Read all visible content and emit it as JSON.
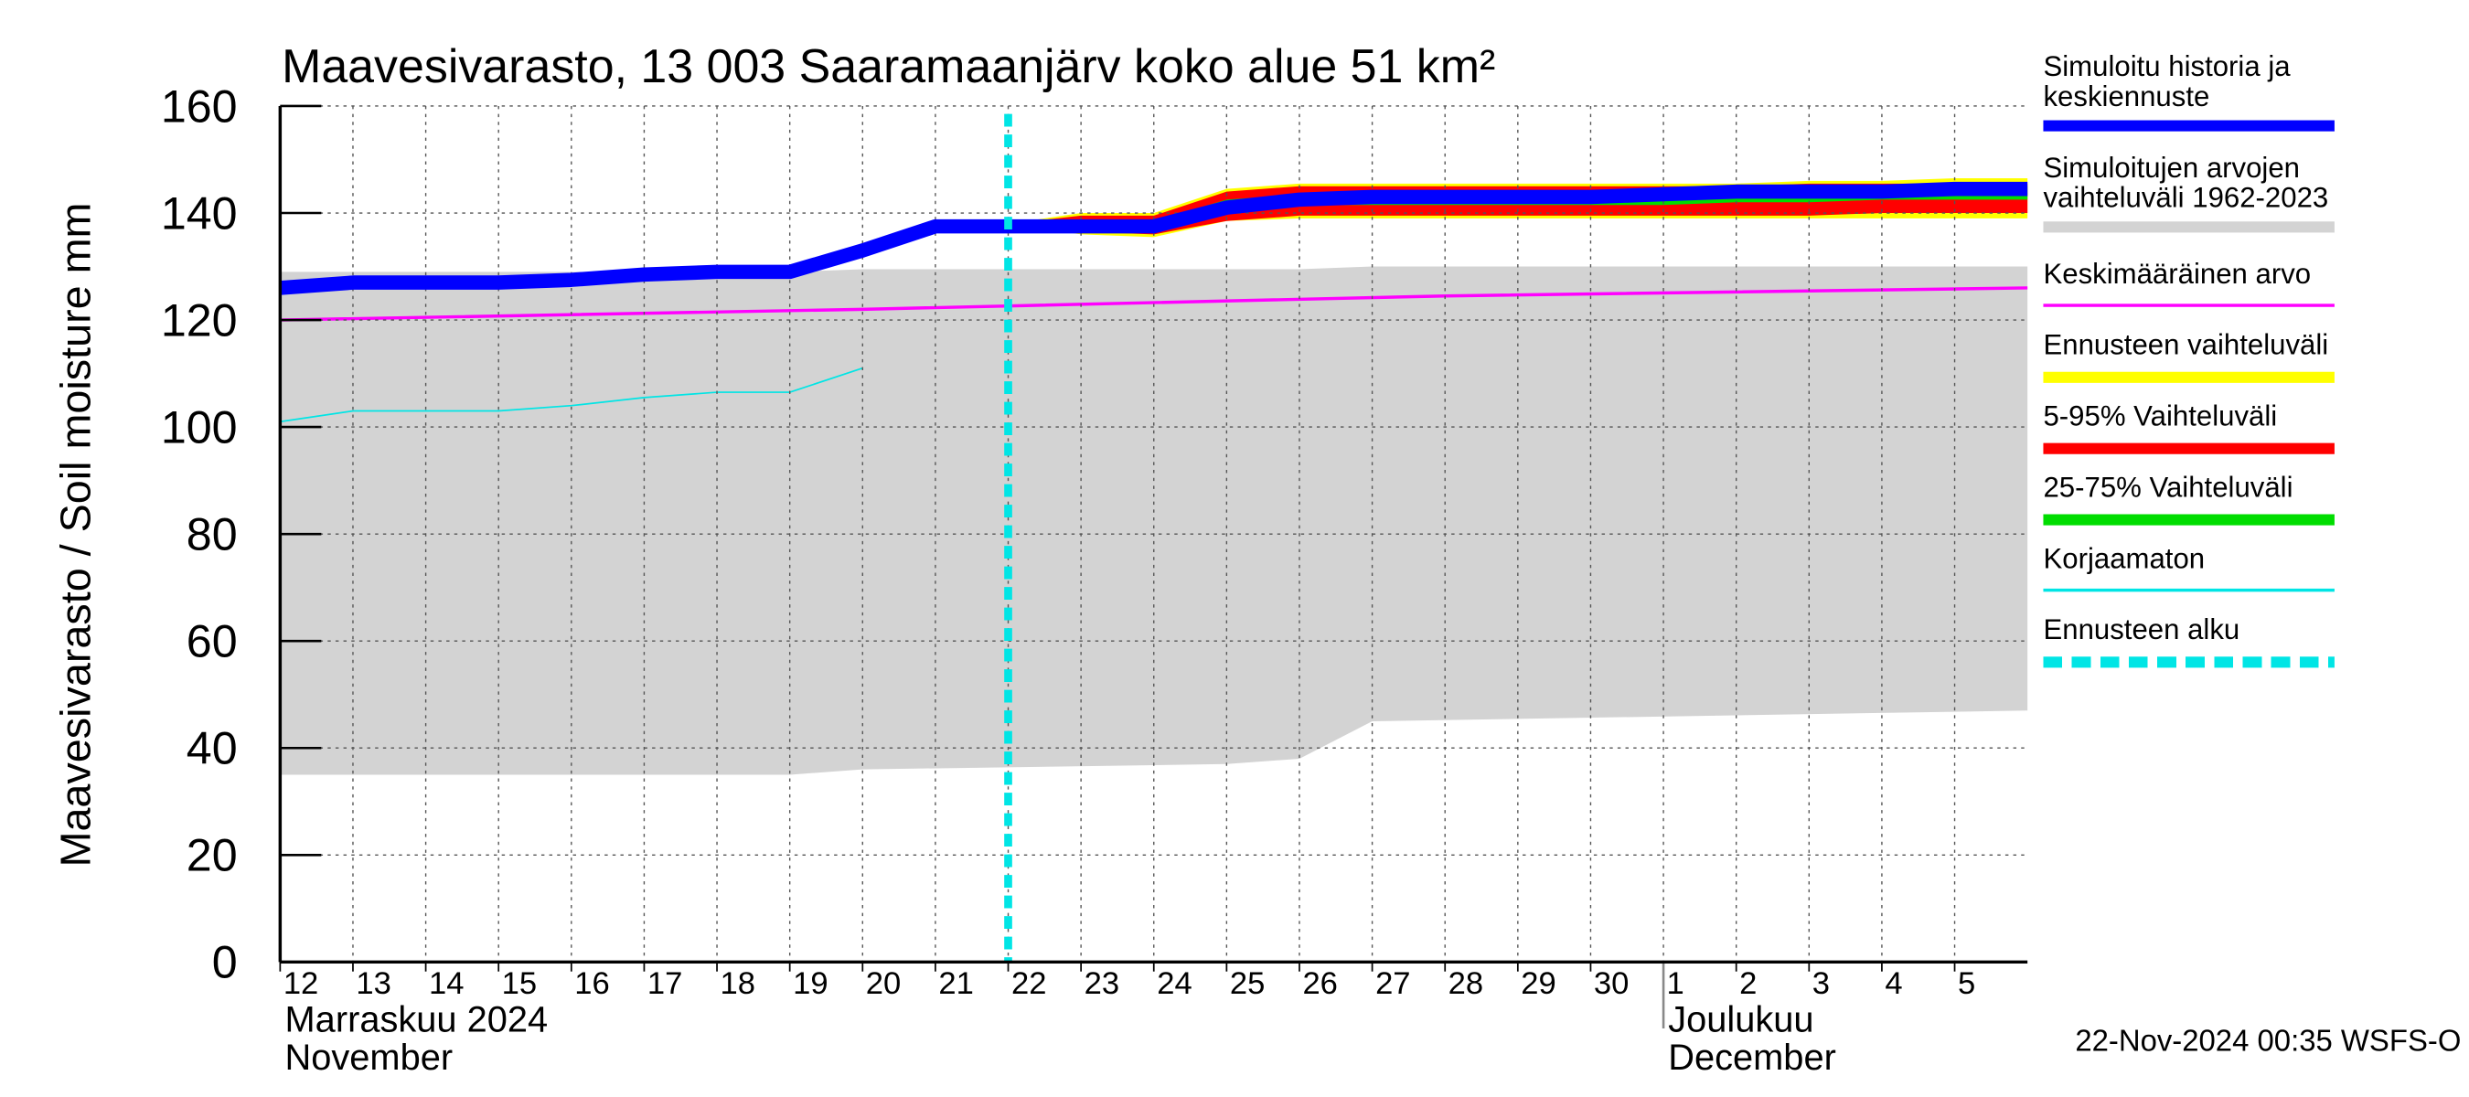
{
  "chart_data": {
    "type": "line",
    "title": "Maavesivarasto, 13 003 Saaramaanjärv koko alue 51 km²",
    "ylabel": "Maavesivarasto / Soil moisture   mm",
    "ylim": [
      0,
      160
    ],
    "yticks": [
      0,
      20,
      40,
      60,
      80,
      100,
      120,
      140,
      160
    ],
    "xlim": [
      0,
      24
    ],
    "xticks": [
      {
        "value": 0,
        "label": "12"
      },
      {
        "value": 1,
        "label": "13"
      },
      {
        "value": 2,
        "label": "14"
      },
      {
        "value": 3,
        "label": "15"
      },
      {
        "value": 4,
        "label": "16"
      },
      {
        "value": 5,
        "label": "17"
      },
      {
        "value": 6,
        "label": "18"
      },
      {
        "value": 7,
        "label": "19"
      },
      {
        "value": 8,
        "label": "20"
      },
      {
        "value": 9,
        "label": "21"
      },
      {
        "value": 10,
        "label": "22"
      },
      {
        "value": 11,
        "label": "23"
      },
      {
        "value": 12,
        "label": "24"
      },
      {
        "value": 13,
        "label": "25"
      },
      {
        "value": 14,
        "label": "26"
      },
      {
        "value": 15,
        "label": "27"
      },
      {
        "value": 16,
        "label": "28"
      },
      {
        "value": 17,
        "label": "29"
      },
      {
        "value": 18,
        "label": "30"
      },
      {
        "value": 19,
        "label": "1"
      },
      {
        "value": 20,
        "label": "2"
      },
      {
        "value": 21,
        "label": "3"
      },
      {
        "value": 22,
        "label": "4"
      },
      {
        "value": 23,
        "label": "5"
      }
    ],
    "months": [
      {
        "value": 0,
        "label": "Marraskuu 2024",
        "label2": "November"
      },
      {
        "value": 19,
        "label": "Joulukuu",
        "label2": "December"
      }
    ],
    "grid": true,
    "timestamp": "22-Nov-2024 00:35 WSFS-O",
    "series": [
      {
        "name": "Simuloitu historia ja keskiennuste",
        "color": "#0000ff",
        "kind": "line",
        "style": "thick",
        "x": [
          0,
          1,
          2,
          3,
          4,
          5,
          6,
          7,
          8,
          9,
          10,
          11,
          12,
          13,
          14,
          15,
          16,
          17,
          18,
          19,
          20,
          21,
          22,
          23,
          24
        ],
        "values": [
          126,
          127,
          127,
          127,
          127.5,
          128.5,
          129,
          129,
          133,
          137.5,
          137.5,
          137.5,
          137.5,
          141,
          142.5,
          143,
          143,
          143,
          143,
          143.5,
          144,
          144,
          144,
          144.5,
          144.5
        ]
      },
      {
        "name": "Simuloitujen arvojen vaihteluväli 1962-2023",
        "color": "#d3d3d3",
        "kind": "band",
        "x": [
          0,
          7,
          8,
          13,
          14,
          15,
          24
        ],
        "lower": [
          35,
          35,
          36,
          37,
          38,
          45,
          47
        ],
        "upper": [
          129,
          129,
          129.5,
          129.5,
          129.5,
          130,
          130
        ]
      },
      {
        "name": "Keskimääräinen arvo",
        "color": "#ff00ff",
        "kind": "line",
        "style": "medium",
        "x": [
          0,
          8,
          16,
          24
        ],
        "values": [
          120,
          122,
          124.5,
          126
        ]
      },
      {
        "name": "Ennusteen vaihteluväli",
        "color": "#ffff00",
        "kind": "band",
        "x": [
          10,
          11,
          12,
          13,
          14,
          15,
          16,
          17,
          18,
          19,
          20,
          21,
          22,
          23,
          24
        ],
        "lower": [
          138,
          136,
          135.5,
          138.5,
          139,
          139,
          139,
          139,
          139,
          139,
          139,
          139,
          139,
          139,
          139
        ],
        "upper": [
          138,
          140,
          140,
          144.5,
          145.5,
          145.5,
          145.5,
          145.5,
          145.5,
          145.5,
          145.5,
          146,
          146,
          146.5,
          146.5
        ]
      },
      {
        "name": "5-95% Vaihteluväli",
        "color": "#ff0000",
        "kind": "band",
        "x": [
          10,
          11,
          12,
          13,
          14,
          15,
          16,
          17,
          18,
          19,
          20,
          21,
          22,
          23,
          24
        ],
        "lower": [
          138,
          136.5,
          136,
          138.5,
          139.5,
          139.5,
          139.5,
          139.5,
          139.5,
          139.5,
          139.5,
          139.5,
          140,
          140,
          140
        ],
        "upper": [
          138,
          139.5,
          139.5,
          144,
          145,
          145,
          145,
          145,
          145,
          145,
          145,
          145.5,
          145.5,
          145.5,
          145.5
        ]
      },
      {
        "name": "25-75% Vaihteluväli",
        "color": "#00dd00",
        "kind": "band",
        "x": [
          10,
          11,
          12,
          13,
          14,
          15,
          16,
          17,
          18,
          19,
          20,
          21,
          22,
          23,
          24
        ],
        "lower": [
          137.5,
          137,
          137,
          140.5,
          141.5,
          141.5,
          141.5,
          141.5,
          141.5,
          141.5,
          142,
          142,
          142.5,
          142.5,
          142.5
        ],
        "upper": [
          138,
          138.5,
          138.5,
          142.5,
          143.5,
          143.5,
          143.5,
          143.5,
          143.5,
          144,
          144,
          144.5,
          144.5,
          144.5,
          145
        ]
      },
      {
        "name": "Korjaamaton",
        "color": "#00e5e5",
        "kind": "line",
        "style": "thin",
        "x": [
          0,
          1,
          2,
          3,
          4,
          5,
          6,
          7,
          8
        ],
        "values": [
          101,
          103,
          103,
          103,
          104,
          105.5,
          106.5,
          106.5,
          111
        ]
      },
      {
        "name": "Ennusteen alku",
        "color": "#00e5e5",
        "kind": "vline",
        "style": "dashed",
        "x": 10
      }
    ]
  }
}
